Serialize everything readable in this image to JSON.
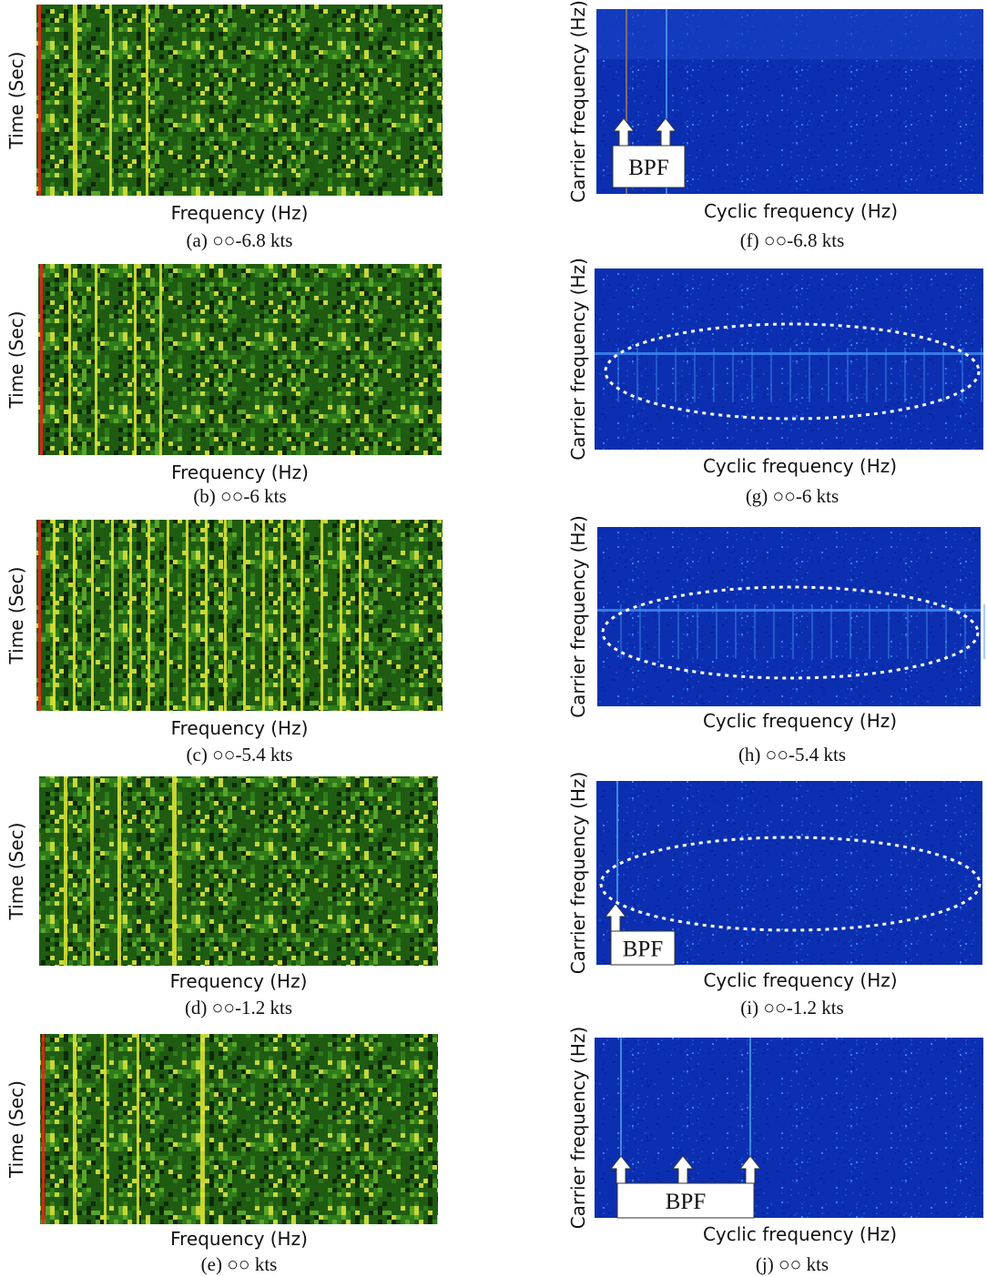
{
  "figure": {
    "spectrograms": [
      {
        "xlabel": "Frequency (Hz)",
        "ylabel": "Time (Sec)",
        "caption": "(a)  ○○-6.8  kts"
      },
      {
        "xlabel": "Frequency (Hz)",
        "ylabel": "Time (Sec)",
        "caption": "(b)  ○○-6  kts"
      },
      {
        "xlabel": "Frequency (Hz)",
        "ylabel": "Time (Sec)",
        "caption": "(c)  ○○-5.4  kts"
      },
      {
        "xlabel": "Frequency (Hz)",
        "ylabel": "Time (Sec)",
        "caption": "(d)  ○○-1.2  kts"
      },
      {
        "xlabel": "Frequency (Hz)",
        "ylabel": "Time (Sec)",
        "caption": "(e)  ○○  kts"
      }
    ],
    "cyclic": [
      {
        "xlabel": "Cyclic frequency (Hz)",
        "ylabel": "Carrier frequency (Hz)",
        "caption": "(f)  ○○-6.8  kts",
        "annotation": "BPF"
      },
      {
        "xlabel": "Cyclic frequency (Hz)",
        "ylabel": "Carrier frequency (Hz)",
        "caption": "(g)  ○○-6  kts"
      },
      {
        "xlabel": "Cyclic frequency (Hz)",
        "ylabel": "Carrier frequency (Hz)",
        "caption": "(h)  ○○-5.4  kts"
      },
      {
        "xlabel": "Cyclic frequency (Hz)",
        "ylabel": "Carrier frequency (Hz)",
        "caption": "(i)  ○○-1.2  kts",
        "annotation": "BPF"
      },
      {
        "xlabel": "Cyclic frequency (Hz)",
        "ylabel": "Carrier frequency (Hz)",
        "caption": "(j)  ○○  kts",
        "annotation": "BPF"
      }
    ]
  }
}
